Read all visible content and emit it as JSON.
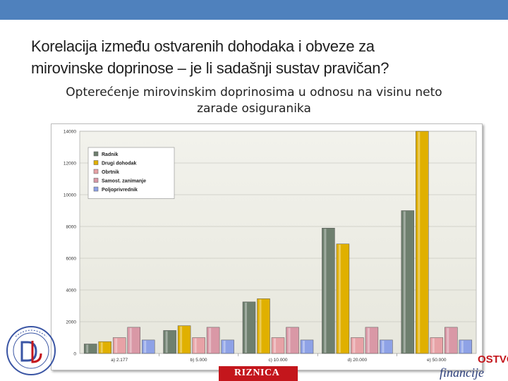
{
  "slide": {
    "title_line1": "Korelacija između ostvarenih dohodaka i obveze za",
    "title_line2": "mirovinske doprinose – je li sadašnji sustav pravičan?",
    "subtitle_line1": "Opterećenje mirovinskim doprinosima u odnosu na visinu neto",
    "subtitle_line2": "zarade osiguranika"
  },
  "logos": {
    "center_text": "RIZNICA",
    "right_text_top": "OSTVO",
    "right_text_bottom": "financije"
  },
  "chart_data": {
    "type": "bar",
    "categories": [
      "a) 2.177",
      "b) 5.000",
      "c) 10.000",
      "d) 20.000",
      "e) 50.000"
    ],
    "series": [
      {
        "name": "Radnik",
        "color": "#6e7f6e",
        "values": [
          600,
          1450,
          3250,
          7900,
          9000
        ]
      },
      {
        "name": "Drugi dohodak",
        "color": "#e0b000",
        "values": [
          750,
          1750,
          3450,
          6900,
          14000
        ]
      },
      {
        "name": "Obrtnik",
        "color": "#e7a2a6",
        "values": [
          1000,
          1000,
          1000,
          1000,
          1000
        ]
      },
      {
        "name": "Samost. zanimanje",
        "color": "#d998a6",
        "values": [
          1650,
          1650,
          1650,
          1650,
          1650
        ]
      },
      {
        "name": "Poljoprivrednik",
        "color": "#8ea2e6",
        "values": [
          850,
          850,
          850,
          850,
          850
        ]
      }
    ],
    "ylim": [
      0,
      14000
    ],
    "yticks": [
      "0",
      "2000",
      "4000",
      "6000",
      "8000",
      "10000",
      "12000",
      "14000"
    ],
    "grid": true,
    "legend": "top-left"
  }
}
